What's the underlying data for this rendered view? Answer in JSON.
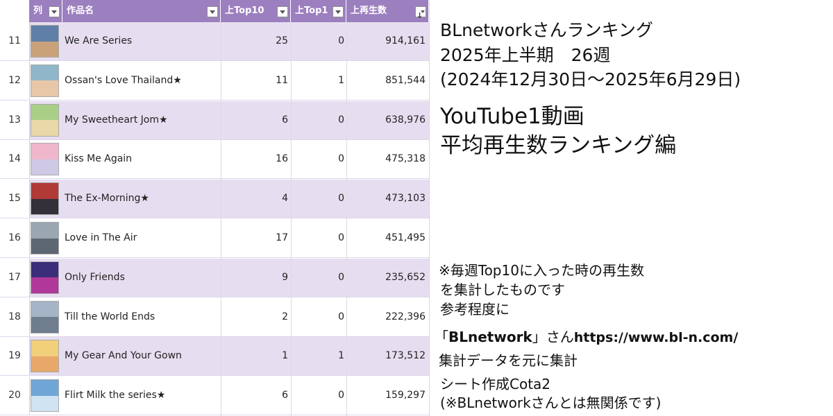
{
  "table": {
    "headers": {
      "col": "列",
      "title": "作品名",
      "top10": "上Top10",
      "top1": "上Top1",
      "plays": "上再生数"
    },
    "rows": [
      {
        "rank": "11",
        "title": "We Are Series",
        "top10": "25",
        "top1": "0",
        "plays": "914,161",
        "colors": [
          "#5f7fa8",
          "#c9a27a"
        ]
      },
      {
        "rank": "12",
        "title": "Ossan's Love Thailand★",
        "top10": "11",
        "top1": "1",
        "plays": "851,544",
        "colors": [
          "#8fb6c9",
          "#e7c7a8"
        ]
      },
      {
        "rank": "13",
        "title": "My Sweetheart Jom★",
        "top10": "6",
        "top1": "0",
        "plays": "638,976",
        "colors": [
          "#a9cf86",
          "#e9d8a8"
        ]
      },
      {
        "rank": "14",
        "title": "Kiss Me Again",
        "top10": "16",
        "top1": "0",
        "plays": "475,318",
        "colors": [
          "#f0b7cc",
          "#cfc9e6"
        ]
      },
      {
        "rank": "15",
        "title": "The Ex-Morning★",
        "top10": "4",
        "top1": "0",
        "plays": "473,103",
        "colors": [
          "#b13a36",
          "#33303a"
        ]
      },
      {
        "rank": "16",
        "title": "Love in The Air",
        "top10": "17",
        "top1": "0",
        "plays": "451,495",
        "colors": [
          "#9aa7b2",
          "#5d6773"
        ]
      },
      {
        "rank": "17",
        "title": "Only Friends",
        "top10": "9",
        "top1": "0",
        "plays": "235,652",
        "colors": [
          "#3a2e7a",
          "#b0389a"
        ]
      },
      {
        "rank": "18",
        "title": "Till the World Ends",
        "top10": "2",
        "top1": "0",
        "plays": "222,396",
        "colors": [
          "#a6b4c8",
          "#6f7d8f"
        ]
      },
      {
        "rank": "19",
        "title": "My Gear And Your Gown",
        "top10": "1",
        "top1": "1",
        "plays": "173,512",
        "colors": [
          "#f2cf7a",
          "#e7a86a"
        ]
      },
      {
        "rank": "20",
        "title": "Flirt Milk the series★",
        "top10": "6",
        "top1": "0",
        "plays": "159,297",
        "colors": [
          "#6fa6d6",
          "#cfe3f2"
        ]
      }
    ]
  },
  "info": {
    "line1": "BLnetworkさんランキング",
    "line2": "2025年上半期　26週",
    "line3": "(2024年12月30日～2025年6月29日)",
    "line4": "YouTube1動画",
    "line5": "平均再生数ランキング編",
    "note1": "※毎週Top10に入った時の再生数",
    "note2": "を集計したものです",
    "note3": "参考程度に",
    "src_prefix": "「",
    "src_name": "BLnetwork",
    "src_mid": "」さん",
    "src_url": "https://www.bl-n.com/",
    "src2": "集計データを元に集計",
    "credit": "シート作成Cota2",
    "disclaimer": "(※BLnetworkさんとは無関係です)"
  }
}
